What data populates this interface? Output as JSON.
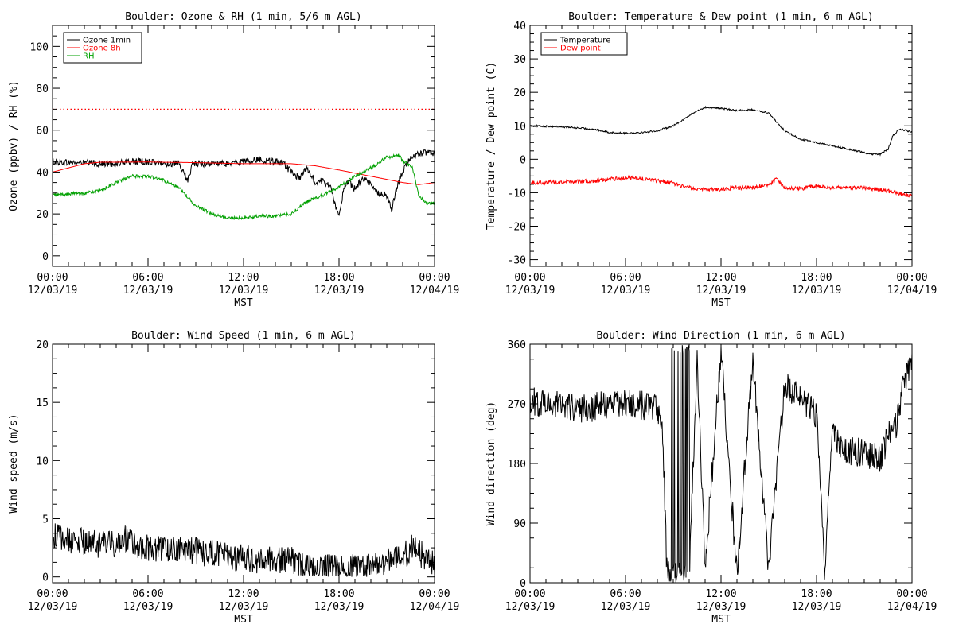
{
  "charts": [
    {
      "id": "ozone-rh",
      "type": "line",
      "title": "Boulder: Ozone & RH (1 min, 5/6 m AGL)",
      "ylabel": "Ozone (ppbv) / RH (%)",
      "xlabel": "MST",
      "ylim": [
        -5,
        110
      ],
      "yticks": [
        0,
        20,
        40,
        60,
        80,
        100
      ],
      "xticks": [
        {
          "time": "00:00",
          "date": "12/03/19"
        },
        {
          "time": "06:00",
          "date": "12/03/19"
        },
        {
          "time": "12:00",
          "date": "12/03/19"
        },
        {
          "time": "18:00",
          "date": "12/03/19"
        },
        {
          "time": "00:00",
          "date": "12/04/19"
        }
      ],
      "reference_line": {
        "y": 70,
        "color": "#ff0000",
        "style": "dotted"
      },
      "legend": {
        "position": "top-left"
      },
      "series": [
        {
          "name": "Ozone 1min",
          "color": "#000000",
          "noise": 1.6,
          "points": [
            [
              0,
              45
            ],
            [
              1,
              44.5
            ],
            [
              2,
              44.5
            ],
            [
              3,
              44
            ],
            [
              4,
              44
            ],
            [
              5,
              45
            ],
            [
              6,
              45
            ],
            [
              7,
              44
            ],
            [
              7.9,
              44
            ],
            [
              8.2,
              40
            ],
            [
              8.5,
              36
            ],
            [
              8.8,
              44
            ],
            [
              10,
              44
            ],
            [
              11,
              44
            ],
            [
              12,
              45
            ],
            [
              13,
              46
            ],
            [
              14,
              45
            ],
            [
              14.5,
              44
            ],
            [
              15,
              40
            ],
            [
              15.5,
              37
            ],
            [
              16,
              42
            ],
            [
              16.5,
              35
            ],
            [
              17,
              36
            ],
            [
              17.5,
              32
            ],
            [
              18,
              18
            ],
            [
              18.3,
              33
            ],
            [
              18.6,
              35
            ],
            [
              19,
              32
            ],
            [
              19.5,
              37
            ],
            [
              20,
              34
            ],
            [
              20.5,
              30
            ],
            [
              21,
              29
            ],
            [
              21.3,
              22
            ],
            [
              21.6,
              32
            ],
            [
              22,
              40
            ],
            [
              22.3,
              45
            ],
            [
              22.6,
              47
            ],
            [
              23,
              49
            ],
            [
              24,
              49
            ]
          ]
        },
        {
          "name": "Ozone 8h",
          "color": "#ff0000",
          "noise": 0,
          "points": [
            [
              0,
              40
            ],
            [
              1,
              42
            ],
            [
              2,
              44
            ],
            [
              3,
              44.7
            ],
            [
              6,
              44.8
            ],
            [
              9,
              44.5
            ],
            [
              12,
              44
            ],
            [
              15,
              44
            ],
            [
              16.5,
              43
            ],
            [
              18,
              41
            ],
            [
              20,
              38
            ],
            [
              22,
              35
            ],
            [
              23,
              34
            ],
            [
              24,
              35
            ]
          ]
        },
        {
          "name": "RH",
          "color": "#00a000",
          "noise": 0.8,
          "points": [
            [
              0,
              29
            ],
            [
              2,
              30
            ],
            [
              3,
              31
            ],
            [
              4,
              35
            ],
            [
              5,
              38
            ],
            [
              6,
              38
            ],
            [
              7,
              36
            ],
            [
              8,
              32
            ],
            [
              9,
              24
            ],
            [
              10,
              20
            ],
            [
              11,
              18
            ],
            [
              12,
              18
            ],
            [
              13,
              19
            ],
            [
              14,
              19
            ],
            [
              15,
              20
            ],
            [
              16,
              26
            ],
            [
              17,
              29
            ],
            [
              18,
              33
            ],
            [
              19,
              38
            ],
            [
              20,
              42
            ],
            [
              21,
              47
            ],
            [
              21.8,
              48
            ],
            [
              22,
              45
            ],
            [
              22.3,
              44
            ],
            [
              22.6,
              42
            ],
            [
              23,
              29
            ],
            [
              23.5,
              25
            ],
            [
              24,
              25
            ]
          ]
        }
      ]
    },
    {
      "id": "temp-dew",
      "type": "line",
      "title": "Boulder: Temperature & Dew point (1 min, 6 m AGL)",
      "ylabel": "Temperature / Dew point (C)",
      "xlabel": "MST",
      "ylim": [
        -32,
        40
      ],
      "yticks": [
        -30,
        -20,
        -10,
        0,
        10,
        20,
        30,
        40
      ],
      "xticks": [
        {
          "time": "00:00",
          "date": "12/03/19"
        },
        {
          "time": "06:00",
          "date": "12/03/19"
        },
        {
          "time": "12:00",
          "date": "12/03/19"
        },
        {
          "time": "18:00",
          "date": "12/03/19"
        },
        {
          "time": "00:00",
          "date": "12/04/19"
        }
      ],
      "legend": {
        "position": "top-left"
      },
      "series": [
        {
          "name": "Temperature",
          "color": "#000000",
          "noise": 0.25,
          "points": [
            [
              0,
              10
            ],
            [
              2,
              9.7
            ],
            [
              4,
              9
            ],
            [
              5,
              8
            ],
            [
              6,
              7.8
            ],
            [
              7,
              8
            ],
            [
              8,
              8.5
            ],
            [
              9,
              10
            ],
            [
              10,
              13
            ],
            [
              10.5,
              14.5
            ],
            [
              11,
              15.5
            ],
            [
              12,
              15.2
            ],
            [
              13,
              14.6
            ],
            [
              14,
              14.8
            ],
            [
              15,
              13.8
            ],
            [
              16,
              8.5
            ],
            [
              17,
              6
            ],
            [
              18,
              5
            ],
            [
              19,
              4
            ],
            [
              20,
              3
            ],
            [
              21,
              2
            ],
            [
              21.5,
              1.5
            ],
            [
              22,
              1.5
            ],
            [
              22.5,
              3
            ],
            [
              22.8,
              7
            ],
            [
              23.2,
              9
            ],
            [
              23.7,
              8.5
            ],
            [
              24,
              8
            ]
          ]
        },
        {
          "name": "Dew point",
          "color": "#ff0000",
          "noise": 0.6,
          "points": [
            [
              0,
              -7
            ],
            [
              2,
              -6.8
            ],
            [
              4,
              -6.5
            ],
            [
              6,
              -5.5
            ],
            [
              7,
              -5.8
            ],
            [
              8,
              -6.5
            ],
            [
              9,
              -7.2
            ],
            [
              10,
              -8.5
            ],
            [
              11,
              -9
            ],
            [
              12,
              -9
            ],
            [
              13,
              -8.5
            ],
            [
              14,
              -8.5
            ],
            [
              15,
              -7.5
            ],
            [
              15.5,
              -6
            ],
            [
              16,
              -8.5
            ],
            [
              17,
              -8.8
            ],
            [
              18,
              -8
            ],
            [
              19,
              -8.5
            ],
            [
              20,
              -8.5
            ],
            [
              21,
              -8.5
            ],
            [
              22,
              -9
            ],
            [
              23,
              -10
            ],
            [
              24,
              -11
            ]
          ]
        }
      ]
    },
    {
      "id": "wind-speed",
      "type": "line",
      "title": "Boulder: Wind Speed (1 min, 6 m AGL)",
      "ylabel": "Wind speed (m/s)",
      "xlabel": "MST",
      "ylim": [
        -0.5,
        20
      ],
      "yticks": [
        0,
        5,
        10,
        15,
        20
      ],
      "xticks": [
        {
          "time": "00:00",
          "date": "12/03/19"
        },
        {
          "time": "06:00",
          "date": "12/03/19"
        },
        {
          "time": "12:00",
          "date": "12/03/19"
        },
        {
          "time": "18:00",
          "date": "12/03/19"
        },
        {
          "time": "00:00",
          "date": "12/04/19"
        }
      ],
      "series": [
        {
          "name": "",
          "color": "#000000",
          "noise": 1.2,
          "floor": 0,
          "points": [
            [
              0,
              3.5
            ],
            [
              1,
              3.2
            ],
            [
              2,
              3
            ],
            [
              3,
              2.8
            ],
            [
              4,
              2.8
            ],
            [
              4.5,
              3.5
            ],
            [
              5,
              2.8
            ],
            [
              6,
              2.5
            ],
            [
              7,
              2.4
            ],
            [
              8,
              2.5
            ],
            [
              9,
              2.2
            ],
            [
              10,
              2
            ],
            [
              11,
              1.8
            ],
            [
              12,
              1.6
            ],
            [
              13,
              1.4
            ],
            [
              14,
              1.5
            ],
            [
              15,
              1.4
            ],
            [
              15.5,
              1
            ],
            [
              16,
              0.8
            ],
            [
              17,
              0.7
            ],
            [
              18,
              0.8
            ],
            [
              19,
              0.9
            ],
            [
              20,
              1.2
            ],
            [
              21,
              1.4
            ],
            [
              22,
              1.6
            ],
            [
              22.5,
              2.5
            ],
            [
              23,
              2.2
            ],
            [
              23.5,
              1.5
            ],
            [
              24,
              1.2
            ]
          ]
        }
      ]
    },
    {
      "id": "wind-dir",
      "type": "line",
      "title": "Boulder: Wind Direction (1 min, 6 m AGL)",
      "ylabel": "Wind direction (deg)",
      "xlabel": "MST",
      "ylim": [
        0,
        360
      ],
      "yticks": [
        0,
        90,
        180,
        270,
        360
      ],
      "xticks": [
        {
          "time": "00:00",
          "date": "12/03/19"
        },
        {
          "time": "06:00",
          "date": "12/03/19"
        },
        {
          "time": "12:00",
          "date": "12/03/19"
        },
        {
          "time": "18:00",
          "date": "12/03/19"
        },
        {
          "time": "00:00",
          "date": "12/04/19"
        }
      ],
      "series": [
        {
          "name": "",
          "color": "#000000",
          "noise": 22,
          "wrap": true,
          "points": [
            [
              0,
              275
            ],
            [
              1,
              272
            ],
            [
              2,
              270
            ],
            [
              3,
              262
            ],
            [
              4,
              265
            ],
            [
              5,
              270
            ],
            [
              6,
              272
            ],
            [
              7,
              268
            ],
            [
              8,
              262
            ],
            [
              8.3,
              250
            ],
            [
              8.6,
              20
            ],
            [
              9,
              10
            ],
            [
              10,
              5
            ],
            [
              10.5,
              340
            ],
            [
              11,
              20
            ],
            [
              12,
              350
            ],
            [
              13,
              10
            ],
            [
              14,
              340
            ],
            [
              15,
              20
            ],
            [
              16,
              300
            ],
            [
              17,
              280
            ],
            [
              18,
              250
            ],
            [
              18.5,
              20
            ],
            [
              19,
              220
            ],
            [
              20,
              200
            ],
            [
              21,
              195
            ],
            [
              22,
              188
            ],
            [
              22.5,
              220
            ],
            [
              23,
              240
            ],
            [
              23.5,
              300
            ],
            [
              24,
              335
            ]
          ]
        }
      ]
    }
  ]
}
